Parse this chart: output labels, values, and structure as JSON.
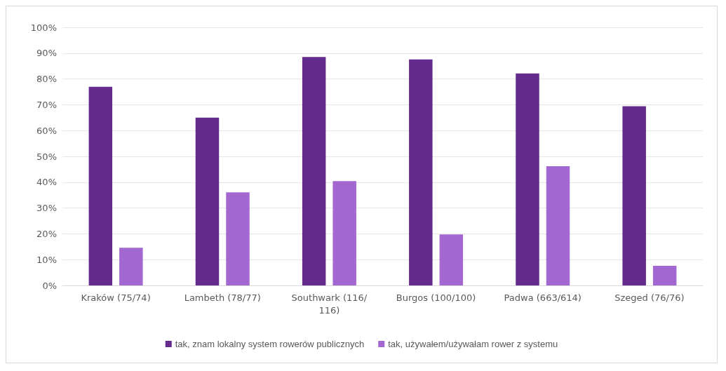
{
  "chart_data": {
    "type": "bar",
    "categories": [
      "Kraków (75/74)",
      "Lambeth (78/77)",
      "Southwark (116/116)",
      "Burgos (100/100)",
      "Padwa (663/614)",
      "Szeged (76/76)"
    ],
    "series": [
      {
        "name": "tak, znam lokalny system rowerów publicznych",
        "color": "#652a8e",
        "values": [
          77,
          65,
          88.5,
          87.6,
          82.1,
          69.4
        ]
      },
      {
        "name": "tak, używałem/używałam rower z systemu",
        "color": "#a267d0",
        "values": [
          14.6,
          36.1,
          40.4,
          19.8,
          46.2,
          7.6
        ]
      }
    ],
    "ylim": [
      0,
      100
    ],
    "yticks": [
      {
        "value": 0,
        "label": "0%"
      },
      {
        "value": 10,
        "label": "10%"
      },
      {
        "value": 20,
        "label": "20%"
      },
      {
        "value": 30,
        "label": "30%"
      },
      {
        "value": 40,
        "label": "40%"
      },
      {
        "value": 50,
        "label": "50%"
      },
      {
        "value": 60,
        "label": "60%"
      },
      {
        "value": 70,
        "label": "70%"
      },
      {
        "value": 80,
        "label": "80%"
      },
      {
        "value": 90,
        "label": "90%"
      },
      {
        "value": 100,
        "label": "100%"
      }
    ],
    "grid": "y",
    "legend": "bottom"
  }
}
